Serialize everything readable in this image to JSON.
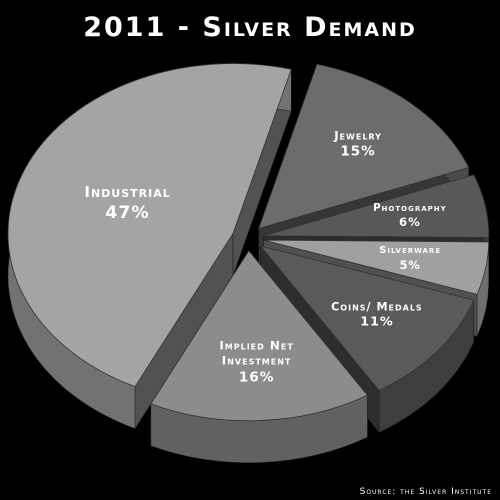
{
  "chart_data": {
    "type": "pie",
    "title": "2011 - Silver Demand",
    "categories": [
      "Jewelry",
      "Photography",
      "Silverware",
      "Coins/ Medals",
      "Implied Net Investment",
      "Industrial"
    ],
    "values": [
      15,
      6,
      5,
      11,
      16,
      47
    ],
    "value_labels": [
      "15%",
      "6%",
      "5%",
      "11%",
      "16%",
      "47%"
    ],
    "colors": [
      "#6c6c6c",
      "#585858",
      "#a0a0a0",
      "#5a5a5a",
      "#8c8c8c",
      "#a4a4a4"
    ],
    "source": "Source: the Silver Institute"
  }
}
